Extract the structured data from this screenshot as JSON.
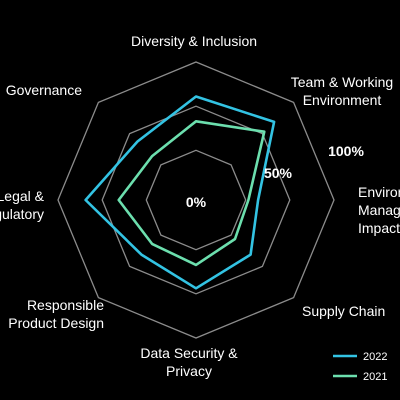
{
  "chart_data": {
    "type": "radar",
    "categories": [
      "Diversity & Inclusion",
      "Team & Working Environment",
      "Environmental Management & Impact",
      "Supply Chain",
      "Data Security & Privacy",
      "Responsible Product Design",
      "Legal & Regulatory",
      "Governance"
    ],
    "ring_labels": [
      "0%",
      "50%",
      "100%"
    ],
    "rlim": [
      0,
      100
    ],
    "series": [
      {
        "name": "2022",
        "color": "#33c3e3",
        "values": [
          75,
          80,
          45,
          56,
          64,
          56,
          80,
          60
        ]
      },
      {
        "name": "2021",
        "color": "#6cdfae",
        "values": [
          57,
          70,
          38,
          40,
          47,
          45,
          56,
          45
        ]
      }
    ],
    "legend": "bottom-right",
    "grid": true,
    "colors": {
      "background": "#000000",
      "grid": "#8c8c8c",
      "text": "#ffffff"
    }
  }
}
